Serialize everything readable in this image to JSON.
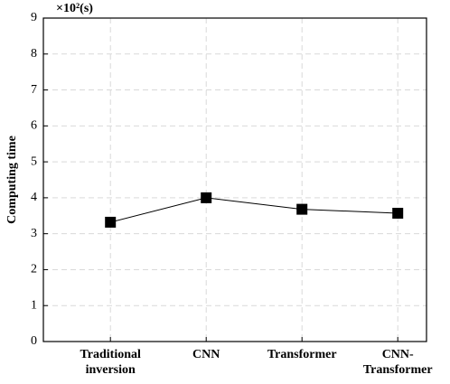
{
  "chart_data": {
    "type": "line",
    "annotation": "×10²(s)",
    "ylabel": "Computing time",
    "categories": [
      "Traditional inversion",
      "CNN",
      "Transformer",
      "CNN-Transformer"
    ],
    "series": [
      {
        "name": "Computing time",
        "color": "#000000",
        "values": [
          3.32,
          4.0,
          3.68,
          3.57
        ]
      }
    ],
    "ylim": [
      0,
      9
    ],
    "yticks": [
      0,
      1,
      2,
      3,
      4,
      5,
      6,
      7,
      8,
      9
    ],
    "grid": true
  }
}
